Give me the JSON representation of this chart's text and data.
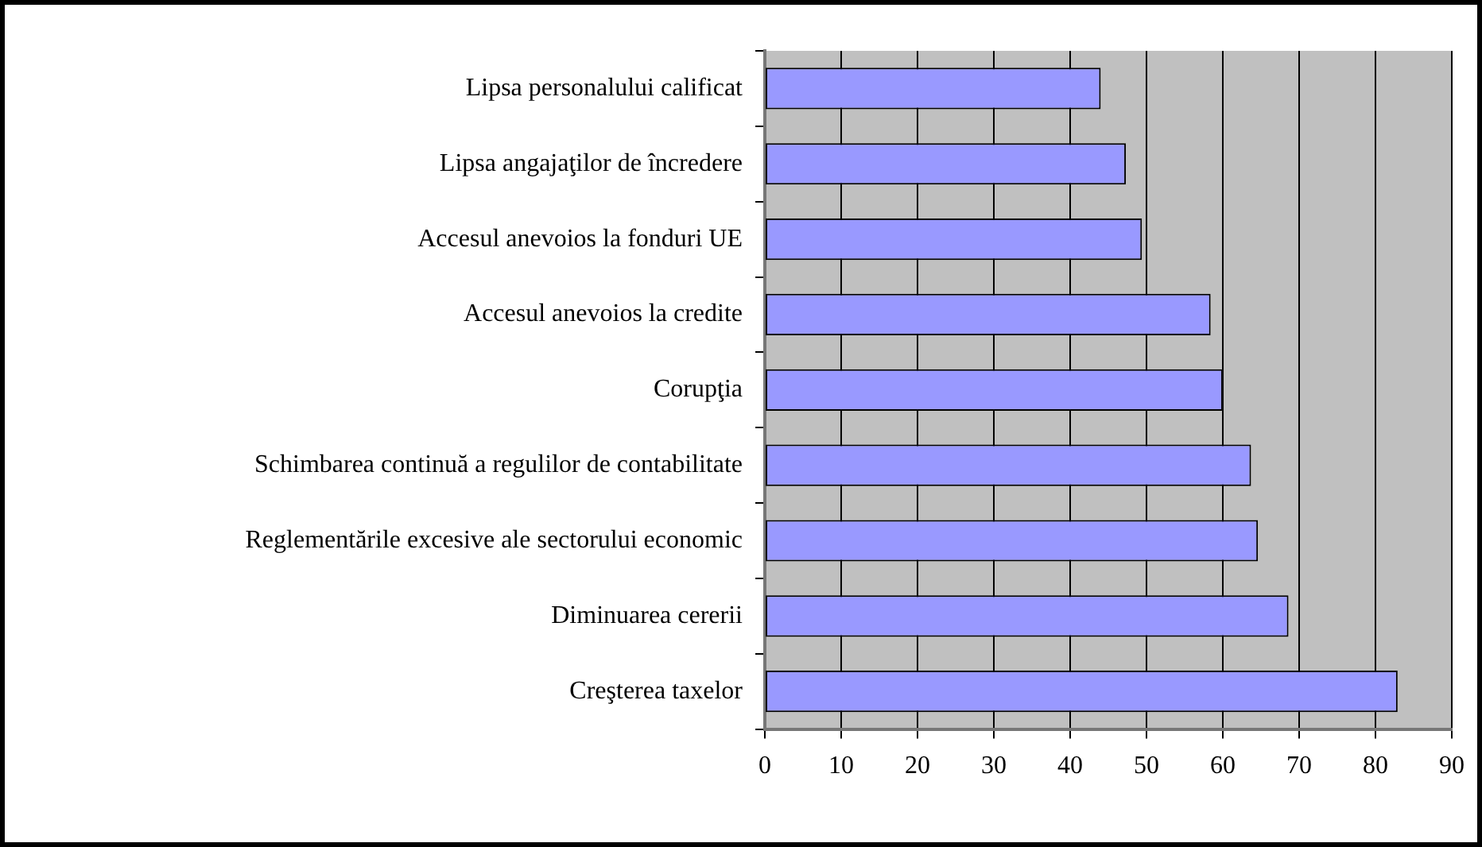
{
  "chart_data": {
    "type": "bar",
    "orientation": "horizontal",
    "categories": [
      "Lipsa personalului calificat",
      "Lipsa angajaţilor de încredere",
      "Accesul anevoios la fonduri UE",
      "Accesul anevoios la credite",
      "Corupţia",
      "Schimbarea continuă a regulilor de contabilitate",
      "Reglementările excesive ale sectorului economic",
      "Diminuarea cererii",
      "Creşterea taxelor"
    ],
    "values": [
      44.0,
      47.3,
      49.4,
      58.4,
      60.0,
      63.7,
      64.6,
      68.6,
      82.9
    ],
    "color": "#9999ff",
    "xlim": [
      0,
      90
    ],
    "xticks": [
      0,
      10,
      20,
      30,
      40,
      50,
      60,
      70,
      80,
      90
    ],
    "grid": "x",
    "legend": false
  }
}
